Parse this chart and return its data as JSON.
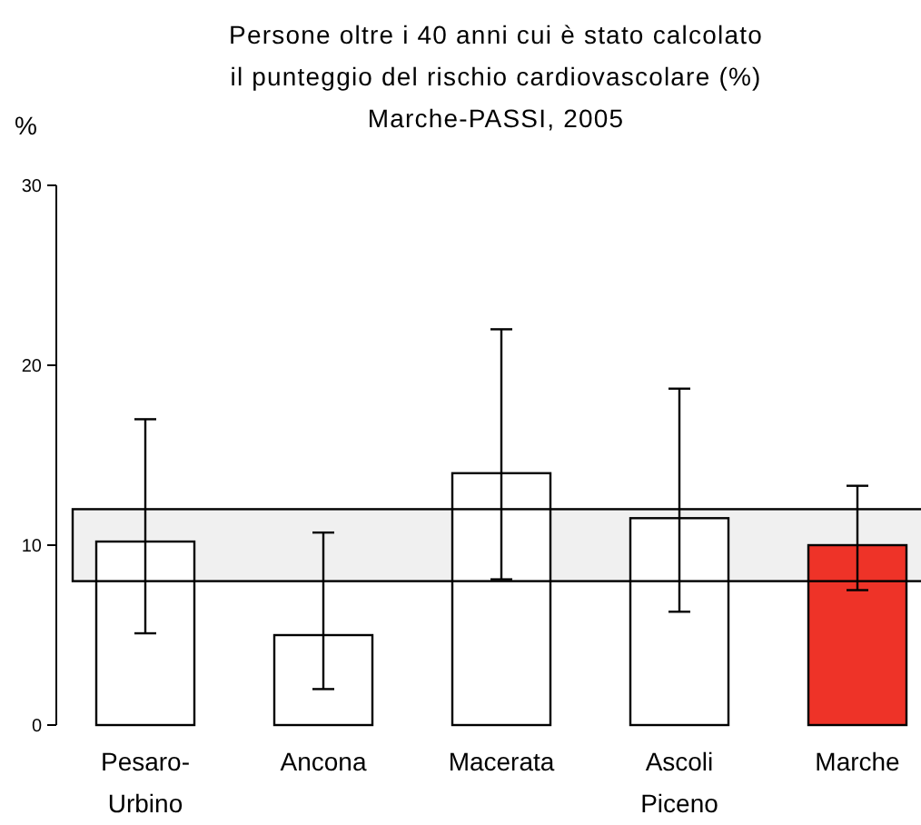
{
  "chart_data": {
    "type": "bar",
    "title": "Persone oltre i 40 anni cui è stato calcolato il punteggio del rischio cardiovascolare (%)",
    "subtitle": "Marche-PASSI, 2005",
    "ylabel": "%",
    "categories": [
      "Pesaro-Urbino",
      "Ancona",
      "Macerata",
      "Ascoli Piceno",
      "Marche"
    ],
    "values": [
      10.2,
      5.0,
      14.0,
      11.5,
      10.0
    ],
    "colors": [
      "#ffffff",
      "#ffffff",
      "#ffffff",
      "#ffffff",
      "#ee3328"
    ],
    "errors": [
      [
        5.1,
        17.0
      ],
      [
        2.0,
        10.7
      ],
      [
        8.1,
        22.0
      ],
      [
        6.3,
        18.7
      ],
      [
        7.5,
        13.3
      ]
    ],
    "bands": [
      {
        "axis": "y",
        "from": 8,
        "to": 12,
        "color": "#000000"
      }
    ],
    "ylim": [
      0,
      30
    ],
    "yticks": [
      0,
      10,
      20,
      30
    ]
  }
}
